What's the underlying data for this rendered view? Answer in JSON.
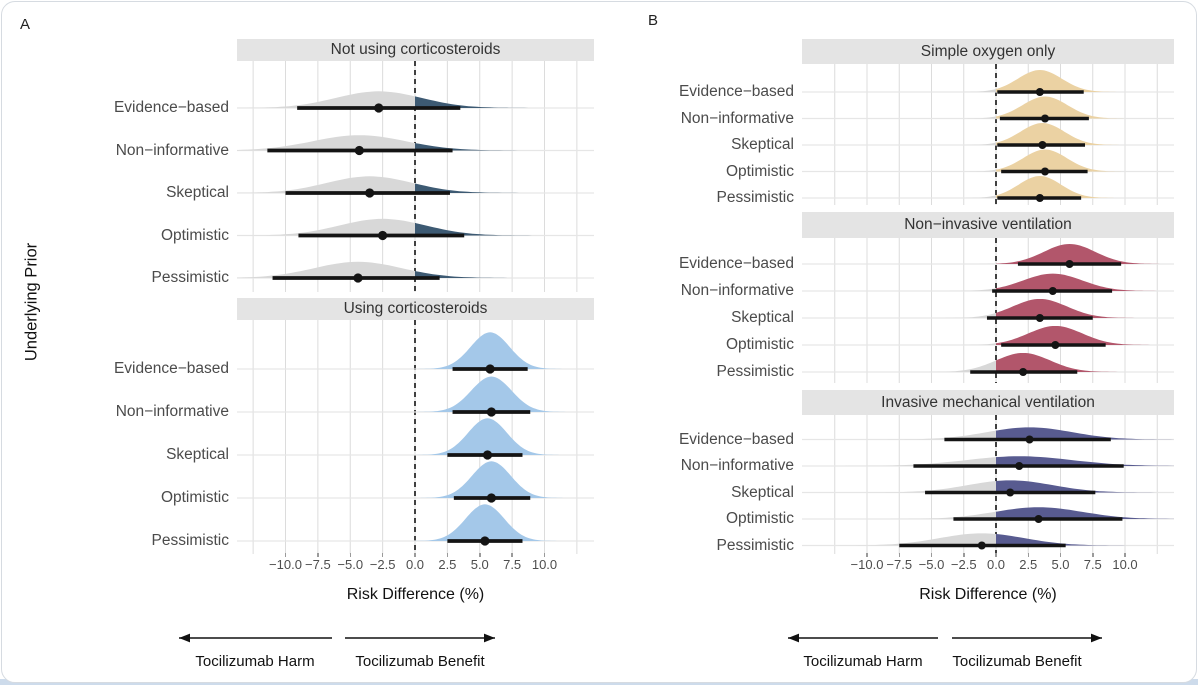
{
  "figure": {
    "panel_a_label": "A",
    "panel_b_label": "B",
    "harm_label": "Tocilizumab Harm",
    "benefit_label": "Tocilizumab Benefit"
  },
  "colors": {
    "negative_fill": "#d8d8d8",
    "strip_background": "#e4e4e4",
    "gridline": "#dcdcdc",
    "row_baseline": "#e6e6e6",
    "reference_line": "#000000",
    "interval": "#141414",
    "accent_not_corticosteroids": "#3d5a73",
    "accent_using_corticosteroids": "#a4c8e9",
    "accent_simple_oxygen": "#ebd2a3",
    "accent_non_invasive": "#b2566b",
    "accent_invasive": "#585b90"
  },
  "chart_data": {
    "type": "ridgeline",
    "xlabel": "Risk Difference (%)",
    "ylabel": "Underlying Prior",
    "xlim": [
      -13.7,
      13.8
    ],
    "x_ticks": [
      -10,
      -7.5,
      -5,
      -2.5,
      0,
      2.5,
      5,
      7.5,
      10
    ],
    "x_tick_labels": [
      "−10.0",
      "−7.5",
      "−5.0",
      "−2.5",
      "0.0",
      "2.5",
      "5.0",
      "7.5",
      "10.0"
    ],
    "grid_step": 2.5,
    "grid_range": [
      -12.5,
      12.5
    ],
    "reference_line_x": 0,
    "legend_note": "density mass left of 0 shaded gray (harm), right of 0 shaded panel accent (benefit); thick bar = credible interval; dot = median",
    "panels": [
      {
        "label": "A",
        "facets": [
          {
            "title": "Not using corticosteroids",
            "accent": "#3d5a73",
            "rows": [
              {
                "prior": "Evidence−based",
                "median": -2.8,
                "ci_low": -9.1,
                "ci_high": 3.5,
                "density_sd": 3.3
              },
              {
                "prior": "Non−informative",
                "median": -4.3,
                "ci_low": -11.4,
                "ci_high": 2.9,
                "density_sd": 3.6
              },
              {
                "prior": "Skeptical",
                "median": -3.5,
                "ci_low": -10.0,
                "ci_high": 2.7,
                "density_sd": 3.3
              },
              {
                "prior": "Optimistic",
                "median": -2.5,
                "ci_low": -9.0,
                "ci_high": 3.8,
                "density_sd": 3.3
              },
              {
                "prior": "Pessimistic",
                "median": -4.4,
                "ci_low": -11.0,
                "ci_high": 1.9,
                "density_sd": 3.4
              }
            ]
          },
          {
            "title": "Using corticosteroids",
            "accent": "#a4c8e9",
            "rows": [
              {
                "prior": "Evidence−based",
                "median": 5.8,
                "ci_low": 2.9,
                "ci_high": 8.7,
                "density_sd": 1.5
              },
              {
                "prior": "Non−informative",
                "median": 5.9,
                "ci_low": 2.9,
                "ci_high": 8.9,
                "density_sd": 1.55
              },
              {
                "prior": "Skeptical",
                "median": 5.6,
                "ci_low": 2.5,
                "ci_high": 8.3,
                "density_sd": 1.5
              },
              {
                "prior": "Optimistic",
                "median": 5.9,
                "ci_low": 3.0,
                "ci_high": 8.9,
                "density_sd": 1.5
              },
              {
                "prior": "Pessimistic",
                "median": 5.4,
                "ci_low": 2.5,
                "ci_high": 8.3,
                "density_sd": 1.5
              }
            ]
          }
        ]
      },
      {
        "label": "B",
        "facets": [
          {
            "title": "Simple oxygen only",
            "accent": "#ebd2a3",
            "rows": [
              {
                "prior": "Evidence−based",
                "median": 3.4,
                "ci_low": 0.1,
                "ci_high": 6.8,
                "density_sd": 1.7
              },
              {
                "prior": "Non−informative",
                "median": 3.8,
                "ci_low": 0.3,
                "ci_high": 7.2,
                "density_sd": 1.75
              },
              {
                "prior": "Skeptical",
                "median": 3.6,
                "ci_low": 0.1,
                "ci_high": 6.9,
                "density_sd": 1.7
              },
              {
                "prior": "Optimistic",
                "median": 3.8,
                "ci_low": 0.4,
                "ci_high": 7.1,
                "density_sd": 1.7
              },
              {
                "prior": "Pessimistic",
                "median": 3.4,
                "ci_low": 0.1,
                "ci_high": 6.6,
                "density_sd": 1.65
              }
            ]
          },
          {
            "title": "Non−invasive ventilation",
            "accent": "#b2566b",
            "rows": [
              {
                "prior": "Evidence−based",
                "median": 5.7,
                "ci_low": 1.7,
                "ci_high": 9.7,
                "density_sd": 2.0
              },
              {
                "prior": "Non−informative",
                "median": 4.4,
                "ci_low": -0.3,
                "ci_high": 9.0,
                "density_sd": 2.3
              },
              {
                "prior": "Skeptical",
                "median": 3.4,
                "ci_low": -0.7,
                "ci_high": 7.5,
                "density_sd": 2.1
              },
              {
                "prior": "Optimistic",
                "median": 4.6,
                "ci_low": 0.4,
                "ci_high": 8.5,
                "density_sd": 2.1
              },
              {
                "prior": "Pessimistic",
                "median": 2.1,
                "ci_low": -2.0,
                "ci_high": 6.3,
                "density_sd": 2.1
              }
            ]
          },
          {
            "title": "Invasive mechanical ventilation",
            "accent": "#585b90",
            "rows": [
              {
                "prior": "Evidence−based",
                "median": 2.6,
                "ci_low": -4.0,
                "ci_high": 8.9,
                "density_sd": 3.3
              },
              {
                "prior": "Non−informative",
                "median": 1.8,
                "ci_low": -6.4,
                "ci_high": 9.9,
                "density_sd": 4.1
              },
              {
                "prior": "Skeptical",
                "median": 1.1,
                "ci_low": -5.5,
                "ci_high": 7.7,
                "density_sd": 3.3
              },
              {
                "prior": "Optimistic",
                "median": 3.3,
                "ci_low": -3.3,
                "ci_high": 9.8,
                "density_sd": 3.4
              },
              {
                "prior": "Pessimistic",
                "median": -1.1,
                "ci_low": -7.5,
                "ci_high": 5.4,
                "density_sd": 3.3
              }
            ]
          }
        ]
      }
    ]
  }
}
